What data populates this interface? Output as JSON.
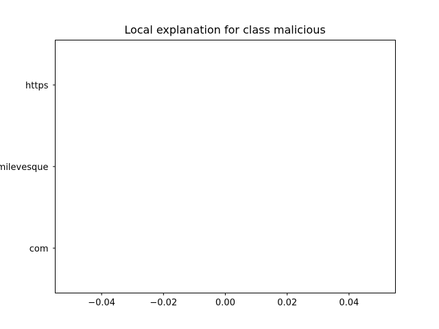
{
  "chart_data": {
    "type": "bar",
    "orientation": "horizontal",
    "title": "Local explanation for class malicious",
    "xlabel": "",
    "ylabel": "",
    "categories": [
      "com",
      "milevesque",
      "https"
    ],
    "values": [
      0,
      0,
      0
    ],
    "xlim": [
      -0.055,
      0.055
    ],
    "xticks": [
      -0.04,
      -0.02,
      0.0,
      0.02,
      0.04
    ],
    "xtick_labels": [
      "−0.04",
      "−0.02",
      "0.00",
      "0.02",
      "0.04"
    ],
    "grid": false,
    "legend": "none",
    "colors": {
      "positive": "#008000",
      "negative": "#ff0000",
      "axis": "#000000",
      "background": "#ffffff"
    }
  }
}
